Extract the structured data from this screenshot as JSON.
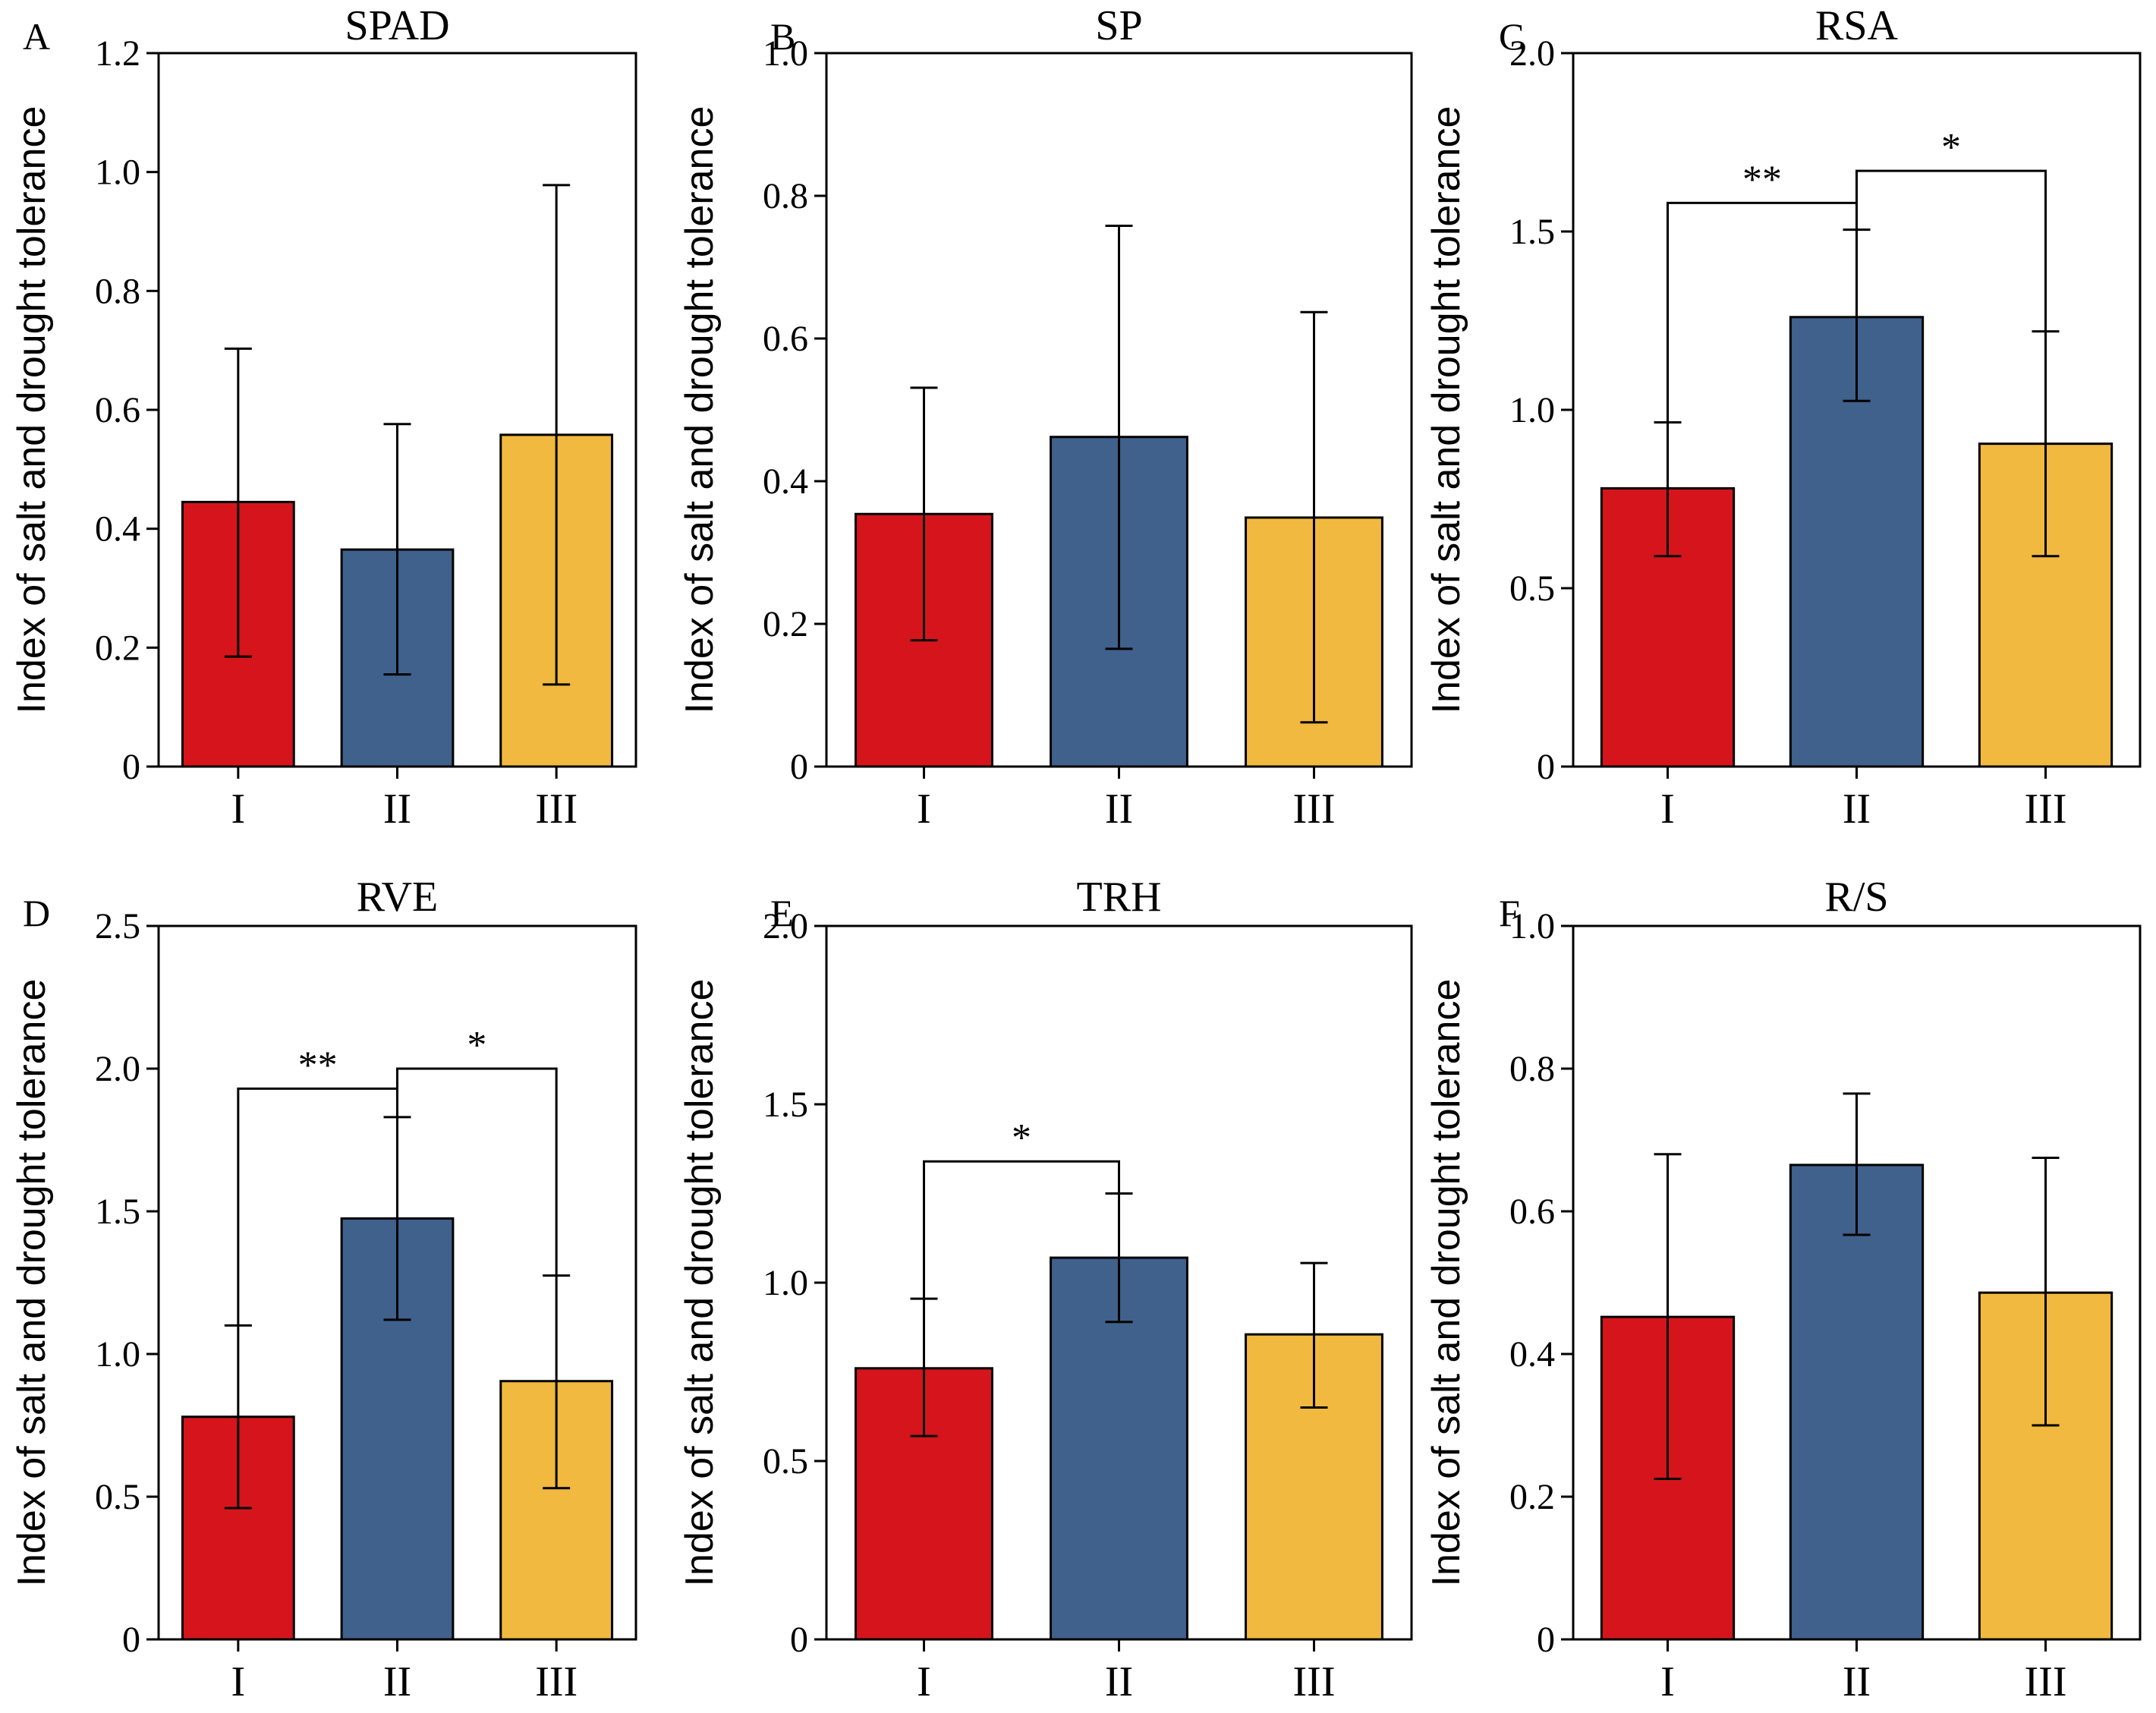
{
  "chart_data": [
    {
      "type": "bar",
      "panel": "A",
      "title": "SPAD",
      "ylabel": "Index of salt and drought tolerance",
      "categories": [
        "I",
        "II",
        "III"
      ],
      "values": [
        0.445,
        0.365,
        0.558
      ],
      "error_low": [
        0.185,
        0.155,
        0.138
      ],
      "error_high": [
        0.703,
        0.576,
        0.978
      ],
      "ylim": [
        0,
        1.2
      ],
      "yticks": [
        "0",
        "0.2",
        "0.4",
        "0.6",
        "0.8",
        "1.0",
        "1.2"
      ],
      "significance": []
    },
    {
      "type": "bar",
      "panel": "B",
      "title": "SP",
      "ylabel": "Index of salt and drought tolerance",
      "categories": [
        "I",
        "II",
        "III"
      ],
      "values": [
        0.354,
        0.462,
        0.349
      ],
      "error_low": [
        0.177,
        0.165,
        0.062
      ],
      "error_high": [
        0.531,
        0.758,
        0.637
      ],
      "ylim": [
        0,
        1.0
      ],
      "yticks": [
        "0",
        "0.2",
        "0.4",
        "0.6",
        "0.8",
        "1.0"
      ],
      "significance": []
    },
    {
      "type": "bar",
      "panel": "C",
      "title": "RSA",
      "ylabel": "Index of salt and drought tolerance",
      "categories": [
        "I",
        "II",
        "III"
      ],
      "values": [
        0.78,
        1.26,
        0.905
      ],
      "error_low": [
        0.59,
        1.025,
        0.59
      ],
      "error_high": [
        0.965,
        1.505,
        1.22
      ],
      "ylim": [
        0,
        2.0
      ],
      "yticks": [
        "0",
        "0.5",
        "1.0",
        "1.5",
        "2.0"
      ],
      "significance": [
        {
          "from": 0,
          "to": 1,
          "level": 1.58,
          "label": "**"
        },
        {
          "from": 1,
          "to": 2,
          "level": 1.67,
          "label": "*"
        }
      ]
    },
    {
      "type": "bar",
      "panel": "D",
      "title": "RVE",
      "ylabel": "Index of salt and drought tolerance",
      "categories": [
        "I",
        "II",
        "III"
      ],
      "values": [
        0.78,
        1.475,
        0.905
      ],
      "error_low": [
        0.46,
        1.12,
        0.53
      ],
      "error_high": [
        1.1,
        1.83,
        1.275
      ],
      "ylim": [
        0,
        2.5
      ],
      "yticks": [
        "0",
        "0.5",
        "1.0",
        "1.5",
        "2.0",
        "2.5"
      ],
      "significance": [
        {
          "from": 0,
          "to": 1,
          "level": 1.93,
          "label": "**"
        },
        {
          "from": 1,
          "to": 2,
          "level": 2.0,
          "label": "*"
        }
      ]
    },
    {
      "type": "bar",
      "panel": "E",
      "title": "TRH",
      "ylabel": "Index of salt and drought tolerance",
      "categories": [
        "I",
        "II",
        "III"
      ],
      "values": [
        0.76,
        1.07,
        0.855
      ],
      "error_low": [
        0.57,
        0.89,
        0.65
      ],
      "error_high": [
        0.955,
        1.25,
        1.055
      ],
      "ylim": [
        0,
        2.0
      ],
      "yticks": [
        "0",
        "0.5",
        "1.0",
        "1.5",
        "2.0"
      ],
      "significance": [
        {
          "from": 0,
          "to": 1,
          "level": 1.34,
          "label": "*"
        }
      ]
    },
    {
      "type": "bar",
      "panel": "F",
      "title": "R/S",
      "ylabel": "Index of salt and drought tolerance",
      "categories": [
        "I",
        "II",
        "III"
      ],
      "values": [
        0.452,
        0.665,
        0.486
      ],
      "error_low": [
        0.225,
        0.567,
        0.3
      ],
      "error_high": [
        0.68,
        0.765,
        0.675
      ],
      "ylim": [
        0,
        1.0
      ],
      "yticks": [
        "0",
        "0.2",
        "0.4",
        "0.6",
        "0.8",
        "1.0"
      ],
      "significance": []
    }
  ],
  "colors": {
    "bar_I": "#d5151b",
    "bar_II": "#3f618c",
    "bar_III": "#f1b93f",
    "axis": "#000000"
  }
}
